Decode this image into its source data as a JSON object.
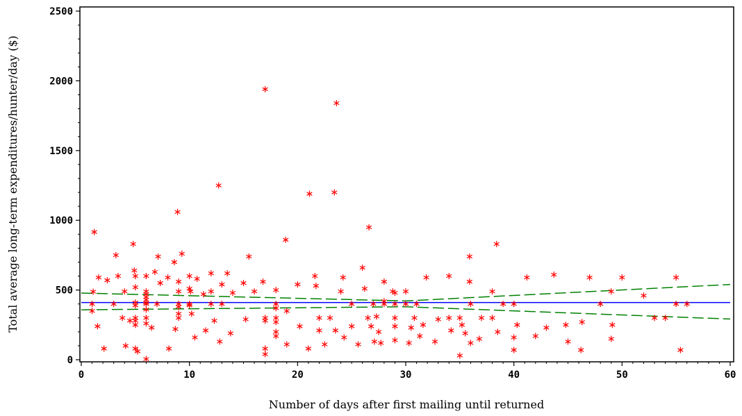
{
  "chart_data": {
    "type": "scatter",
    "title": "",
    "xlabel": "Number of days after first mailing until returned",
    "ylabel": "Total average long-term expenditures/hunter/day ($)",
    "xlim": [
      0,
      60
    ],
    "ylim": [
      0,
      2500
    ],
    "x_ticks": [
      "0",
      "10",
      "20",
      "30",
      "40",
      "50",
      "60"
    ],
    "y_ticks": [
      "0",
      "500",
      "1000",
      "1500",
      "2000",
      "2500"
    ],
    "grid": false,
    "legend": "none",
    "colors": {
      "points": "#ff0000",
      "mean_line": "#0000ff",
      "confidence_band": "#008000",
      "axes": "#000000"
    },
    "mean_line": {
      "x": [
        0,
        60
      ],
      "y": [
        410,
        410
      ]
    },
    "confidence_band": {
      "upper": {
        "x": [
          0,
          30,
          60
        ],
        "y": [
          478,
          422,
          540
        ]
      },
      "lower": {
        "x": [
          0,
          30,
          60
        ],
        "y": [
          358,
          380,
          292
        ]
      }
    },
    "points": [
      [
        1.2,
        916
      ],
      [
        1.1,
        488
      ],
      [
        1.0,
        400
      ],
      [
        1.0,
        350
      ],
      [
        1.5,
        240
      ],
      [
        1.6,
        590
      ],
      [
        2.1,
        80
      ],
      [
        2.4,
        570
      ],
      [
        3.0,
        400
      ],
      [
        3.2,
        750
      ],
      [
        3.4,
        600
      ],
      [
        3.8,
        300
      ],
      [
        4.0,
        490
      ],
      [
        4.1,
        100
      ],
      [
        4.5,
        280
      ],
      [
        4.8,
        830
      ],
      [
        4.9,
        640
      ],
      [
        5.0,
        600
      ],
      [
        5.0,
        520
      ],
      [
        5.0,
        410
      ],
      [
        5.0,
        390
      ],
      [
        5.0,
        300
      ],
      [
        5.0,
        280
      ],
      [
        5.0,
        250
      ],
      [
        5.0,
        80
      ],
      [
        5.2,
        60
      ],
      [
        6.0,
        490
      ],
      [
        6.0,
        470
      ],
      [
        6.0,
        450
      ],
      [
        6.0,
        430
      ],
      [
        6.0,
        410
      ],
      [
        6.0,
        400
      ],
      [
        6.0,
        360
      ],
      [
        6.0,
        300
      ],
      [
        6.0,
        260
      ],
      [
        6.0,
        600
      ],
      [
        6.0,
        5
      ],
      [
        6.5,
        230
      ],
      [
        6.8,
        630
      ],
      [
        7.0,
        400
      ],
      [
        7.1,
        740
      ],
      [
        7.3,
        550
      ],
      [
        8.0,
        590
      ],
      [
        8.1,
        80
      ],
      [
        8.6,
        700
      ],
      [
        8.7,
        220
      ],
      [
        8.9,
        1060
      ],
      [
        9.0,
        560
      ],
      [
        9.0,
        490
      ],
      [
        9.0,
        400
      ],
      [
        9.0,
        380
      ],
      [
        9.0,
        330
      ],
      [
        9.0,
        300
      ],
      [
        9.3,
        760
      ],
      [
        10.0,
        600
      ],
      [
        10.0,
        510
      ],
      [
        10.1,
        490
      ],
      [
        10.0,
        400
      ],
      [
        10.0,
        390
      ],
      [
        10.2,
        330
      ],
      [
        10.5,
        160
      ],
      [
        10.7,
        580
      ],
      [
        11.3,
        470
      ],
      [
        11.5,
        210
      ],
      [
        12.0,
        620
      ],
      [
        12.0,
        490
      ],
      [
        12.0,
        400
      ],
      [
        12.3,
        280
      ],
      [
        12.7,
        1250
      ],
      [
        12.8,
        130
      ],
      [
        13.0,
        540
      ],
      [
        13.0,
        400
      ],
      [
        13.5,
        620
      ],
      [
        13.8,
        190
      ],
      [
        14.0,
        480
      ],
      [
        15.0,
        550
      ],
      [
        15.2,
        290
      ],
      [
        15.5,
        740
      ],
      [
        16.0,
        490
      ],
      [
        17.0,
        1940
      ],
      [
        16.8,
        560
      ],
      [
        17.0,
        300
      ],
      [
        17.0,
        280
      ],
      [
        17.0,
        80
      ],
      [
        17.0,
        40
      ],
      [
        18.0,
        500
      ],
      [
        18.0,
        400
      ],
      [
        18.0,
        370
      ],
      [
        18.0,
        300
      ],
      [
        18.0,
        270
      ],
      [
        18.0,
        200
      ],
      [
        18.0,
        170
      ],
      [
        18.9,
        860
      ],
      [
        19.0,
        350
      ],
      [
        19.0,
        110
      ],
      [
        20.0,
        540
      ],
      [
        20.2,
        240
      ],
      [
        21.0,
        80
      ],
      [
        21.1,
        1190
      ],
      [
        21.6,
        600
      ],
      [
        21.7,
        530
      ],
      [
        22.0,
        300
      ],
      [
        22.0,
        210
      ],
      [
        22.5,
        110
      ],
      [
        23.0,
        300
      ],
      [
        23.4,
        1200
      ],
      [
        23.5,
        210
      ],
      [
        23.6,
        1840
      ],
      [
        24.0,
        490
      ],
      [
        24.2,
        590
      ],
      [
        24.3,
        160
      ],
      [
        25.0,
        400
      ],
      [
        25.0,
        240
      ],
      [
        25.6,
        110
      ],
      [
        26.0,
        660
      ],
      [
        26.2,
        510
      ],
      [
        26.5,
        300
      ],
      [
        26.6,
        950
      ],
      [
        26.8,
        240
      ],
      [
        27.0,
        400
      ],
      [
        27.1,
        130
      ],
      [
        27.3,
        310
      ],
      [
        27.5,
        200
      ],
      [
        27.7,
        120
      ],
      [
        28.0,
        560
      ],
      [
        28.0,
        420
      ],
      [
        28.0,
        400
      ],
      [
        28.8,
        490
      ],
      [
        29.0,
        480
      ],
      [
        29.0,
        400
      ],
      [
        29.0,
        300
      ],
      [
        29.0,
        240
      ],
      [
        29.0,
        140
      ],
      [
        30.0,
        490
      ],
      [
        30.0,
        400
      ],
      [
        30.3,
        120
      ],
      [
        30.5,
        230
      ],
      [
        30.8,
        300
      ],
      [
        31.0,
        400
      ],
      [
        31.3,
        170
      ],
      [
        31.6,
        250
      ],
      [
        31.9,
        590
      ],
      [
        32.7,
        130
      ],
      [
        33.0,
        290
      ],
      [
        34.0,
        600
      ],
      [
        34.0,
        300
      ],
      [
        34.2,
        210
      ],
      [
        35.0,
        30
      ],
      [
        35.0,
        300
      ],
      [
        35.2,
        250
      ],
      [
        35.5,
        190
      ],
      [
        35.9,
        740
      ],
      [
        35.9,
        560
      ],
      [
        36.0,
        400
      ],
      [
        36.0,
        120
      ],
      [
        36.8,
        150
      ],
      [
        37.0,
        300
      ],
      [
        38.0,
        490
      ],
      [
        38.0,
        300
      ],
      [
        38.4,
        830
      ],
      [
        38.5,
        200
      ],
      [
        39.0,
        400
      ],
      [
        40.0,
        400
      ],
      [
        40.0,
        160
      ],
      [
        40.0,
        70
      ],
      [
        40.3,
        250
      ],
      [
        41.2,
        590
      ],
      [
        42.0,
        170
      ],
      [
        43.0,
        230
      ],
      [
        43.7,
        610
      ],
      [
        44.8,
        250
      ],
      [
        45.0,
        130
      ],
      [
        46.2,
        70
      ],
      [
        46.3,
        270
      ],
      [
        47.0,
        590
      ],
      [
        48.0,
        400
      ],
      [
        49.0,
        490
      ],
      [
        49.1,
        250
      ],
      [
        49.0,
        150
      ],
      [
        50.0,
        590
      ],
      [
        52.0,
        460
      ],
      [
        53.0,
        300
      ],
      [
        54.0,
        300
      ],
      [
        55.0,
        590
      ],
      [
        55.0,
        400
      ],
      [
        55.4,
        70
      ],
      [
        56.0,
        400
      ]
    ]
  }
}
